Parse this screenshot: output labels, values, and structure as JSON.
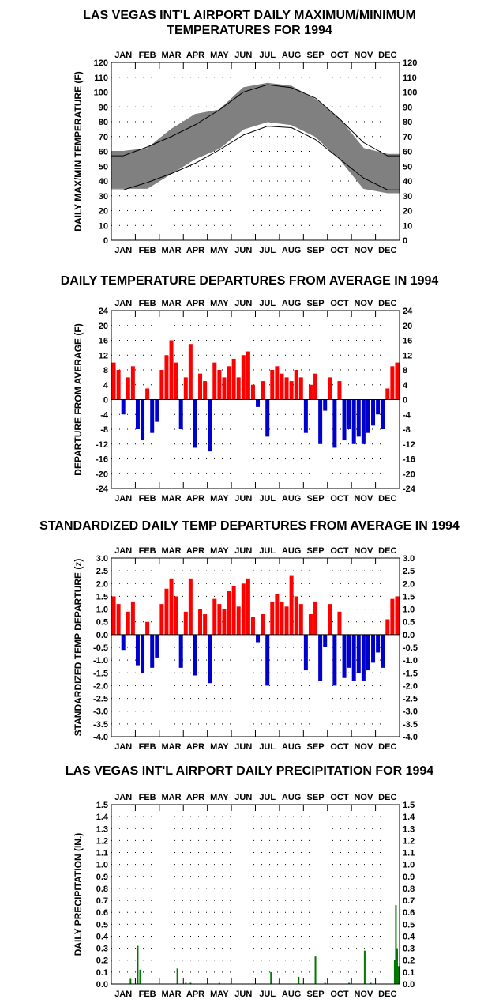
{
  "months": [
    "JAN",
    "FEB",
    "MAR",
    "APR",
    "MAY",
    "JUN",
    "JUL",
    "AUG",
    "SEP",
    "OCT",
    "NOV",
    "DEC"
  ],
  "colors": {
    "positive": "#ff0000",
    "negative": "#0000cc",
    "range": "#808080",
    "precip": "#007700",
    "grid": "#000000"
  },
  "charts": {
    "temps": {
      "title_line1": "LAS VEGAS INT'L AIRPORT DAILY MAXIMUM/MINIMUM",
      "title_line2": "TEMPERATURES FOR 1994",
      "ylabel": "DAILY MAX/MIN TEMPERATURE (F)",
      "ticks": [
        "0",
        "10",
        "20",
        "30",
        "40",
        "50",
        "60",
        "70",
        "80",
        "90",
        "100",
        "110",
        "120"
      ]
    },
    "departures": {
      "title": "DAILY TEMPERATURE DEPARTURES FROM AVERAGE IN 1994",
      "ylabel": "DEPARTURE FROM AVERAGE (F)",
      "ticks": [
        "-24",
        "-20",
        "-16",
        "-12",
        "-8",
        "-4",
        "0",
        "4",
        "8",
        "12",
        "16",
        "20",
        "24"
      ]
    },
    "zscores": {
      "title": "STANDARDIZED DAILY TEMP DEPARTURES FROM AVERAGE IN 1994",
      "ylabel": "STANDARDIZED TEMP DEPARTURE (z)",
      "ticks": [
        "-4.0",
        "-3.5",
        "-3.0",
        "-2.5",
        "-2.0",
        "-1.5",
        "-1.0",
        "-0.5",
        "0.0",
        "0.5",
        "1.0",
        "1.5",
        "2.0",
        "2.5",
        "3.0"
      ]
    },
    "precip": {
      "title": "LAS VEGAS INT'L AIRPORT DAILY PRECIPITATION FOR 1994",
      "ylabel": "DAILY PRECIPITATION (IN.)",
      "ticks": [
        "0.0",
        "0.1",
        "0.2",
        "0.3",
        "0.4",
        "0.5",
        "0.6",
        "0.7",
        "0.8",
        "0.9",
        "1.0",
        "1.1",
        "1.2",
        "1.3",
        "1.4",
        "1.5"
      ]
    }
  },
  "chart_data": [
    {
      "type": "area",
      "title": "LAS VEGAS INT'L AIRPORT DAILY MAXIMUM/MINIMUM TEMPERATURES FOR 1994",
      "ylabel": "DAILY MAX/MIN TEMPERATURE (F)",
      "ylim": [
        0,
        120
      ],
      "grid": true,
      "x_unit": "month",
      "x": [
        0.5,
        1.5,
        2.5,
        3.5,
        4.5,
        5.5,
        6.5,
        7.5,
        8.5,
        9.5,
        10.5,
        11.5
      ],
      "series": [
        {
          "kind": "daily_max_band_top",
          "values": [
            60,
            62,
            75,
            85,
            88,
            103,
            106,
            104,
            95,
            82,
            62,
            58
          ]
        },
        {
          "kind": "daily_min_band_bottom",
          "values": [
            35,
            35,
            45,
            55,
            62,
            75,
            80,
            78,
            70,
            55,
            35,
            32
          ]
        }
      ],
      "normals": {
        "max": [
          57,
          63,
          70,
          78,
          88,
          100,
          105,
          103,
          96,
          82,
          66,
          57
        ],
        "min": [
          34,
          39,
          45,
          52,
          61,
          71,
          77,
          76,
          68,
          55,
          42,
          34
        ]
      }
    },
    {
      "type": "bar",
      "title": "DAILY TEMPERATURE DEPARTURES FROM AVERAGE IN 1994",
      "ylabel": "DEPARTURE FROM AVERAGE (F)",
      "ylim": [
        -24,
        24
      ],
      "grid": true,
      "x_unit": "month",
      "x": [
        0.1,
        0.3,
        0.5,
        0.7,
        0.9,
        1.1,
        1.3,
        1.5,
        1.7,
        1.9,
        2.1,
        2.3,
        2.5,
        2.7,
        2.9,
        3.1,
        3.3,
        3.5,
        3.7,
        3.9,
        4.1,
        4.3,
        4.5,
        4.7,
        4.9,
        5.1,
        5.3,
        5.5,
        5.7,
        5.9,
        6.1,
        6.3,
        6.5,
        6.7,
        6.9,
        7.1,
        7.3,
        7.5,
        7.7,
        7.9,
        8.1,
        8.3,
        8.5,
        8.7,
        8.9,
        9.1,
        9.3,
        9.5,
        9.7,
        9.9,
        10.1,
        10.3,
        10.5,
        10.7,
        10.9,
        11.1,
        11.3,
        11.5,
        11.7,
        11.9
      ],
      "values": [
        10,
        8,
        -4,
        6,
        9,
        -8,
        -11,
        3,
        -9,
        -6,
        8,
        12,
        16,
        10,
        -8,
        6,
        15,
        -13,
        7,
        5,
        -14,
        10,
        8,
        6,
        9,
        11,
        6,
        12,
        13,
        4,
        -2,
        5,
        -10,
        8,
        9,
        7,
        6,
        5,
        8,
        6,
        -9,
        4,
        7,
        -12,
        -3,
        6,
        -13,
        5,
        -11,
        -8,
        -12,
        -10,
        -12,
        -9,
        -7,
        -4,
        -8,
        3,
        9,
        10
      ]
    },
    {
      "type": "bar",
      "title": "STANDARDIZED DAILY TEMP DEPARTURES FROM AVERAGE IN 1994",
      "ylabel": "STANDARDIZED TEMP DEPARTURE (z)",
      "ylim": [
        -4.0,
        3.0
      ],
      "grid": true,
      "x_unit": "month",
      "x": [
        0.1,
        0.3,
        0.5,
        0.7,
        0.9,
        1.1,
        1.3,
        1.5,
        1.7,
        1.9,
        2.1,
        2.3,
        2.5,
        2.7,
        2.9,
        3.1,
        3.3,
        3.5,
        3.7,
        3.9,
        4.1,
        4.3,
        4.5,
        4.7,
        4.9,
        5.1,
        5.3,
        5.5,
        5.7,
        5.9,
        6.1,
        6.3,
        6.5,
        6.7,
        6.9,
        7.1,
        7.3,
        7.5,
        7.7,
        7.9,
        8.1,
        8.3,
        8.5,
        8.7,
        8.9,
        9.1,
        9.3,
        9.5,
        9.7,
        9.9,
        10.1,
        10.3,
        10.5,
        10.7,
        10.9,
        11.1,
        11.3,
        11.5,
        11.7,
        11.9
      ],
      "values": [
        1.5,
        1.2,
        -0.6,
        0.9,
        1.3,
        -1.2,
        -1.5,
        0.5,
        -1.3,
        -0.9,
        1.2,
        1.8,
        2.2,
        1.5,
        -1.3,
        0.9,
        2.2,
        -1.6,
        1.0,
        0.8,
        -1.9,
        1.4,
        1.2,
        1.0,
        1.7,
        1.9,
        1.1,
        2.0,
        2.2,
        0.7,
        -0.3,
        0.8,
        -2.0,
        1.3,
        1.6,
        1.3,
        1.1,
        2.3,
        1.5,
        1.2,
        -1.4,
        0.8,
        1.3,
        -1.8,
        -0.5,
        1.2,
        -2.0,
        0.9,
        -1.7,
        -1.3,
        -1.8,
        -1.5,
        -1.8,
        -1.4,
        -1.1,
        -0.7,
        -1.3,
        0.6,
        1.4,
        1.5
      ]
    },
    {
      "type": "bar",
      "title": "LAS VEGAS INT'L AIRPORT DAILY PRECIPITATION FOR 1994",
      "ylabel": "DAILY PRECIPITATION (IN.)",
      "ylim": [
        0.0,
        1.5
      ],
      "grid": true,
      "x_unit": "month",
      "x": [
        0.8,
        1.1,
        1.2,
        2.75,
        3.1,
        3.3,
        4.5,
        6.65,
        7.0,
        7.8,
        8.5,
        8.9,
        9.9,
        10.55,
        10.8,
        11.8,
        11.85,
        11.9,
        11.95
      ],
      "values": [
        0.05,
        0.32,
        0.12,
        0.13,
        0.01,
        0.01,
        0.01,
        0.1,
        0.04,
        0.06,
        0.23,
        0.01,
        0.01,
        0.28,
        0.01,
        0.2,
        0.66,
        0.3,
        0.15
      ]
    }
  ]
}
